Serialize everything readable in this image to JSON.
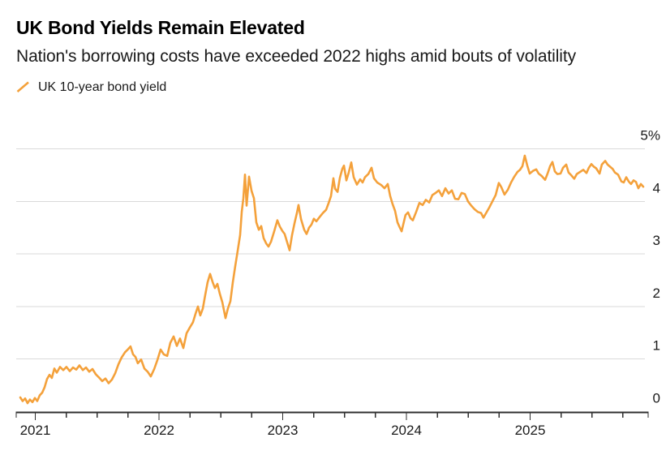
{
  "header": {
    "title": "UK Bond Yields Remain Elevated",
    "subtitle": "Nation's borrowing costs have exceeded 2022 highs amid bouts of volatility"
  },
  "legend": {
    "label": "UK 10-year bond yield",
    "marker": "orange-slash"
  },
  "colors": {
    "line": "#F4A13B",
    "grid": "#D9D9D9",
    "axis": "#2F2F2F",
    "tick_text": "#1A1A1A",
    "background": "#FFFFFF"
  },
  "chart_data": {
    "type": "line",
    "title": "UK Bond Yields Remain Elevated",
    "subtitle": "Nation's borrowing costs have exceeded 2022 highs amid bouts of volatility",
    "legend_position": "top-left",
    "grid": "horizontal",
    "x_axis": {
      "tick_values": [
        2021,
        2022,
        2023,
        2024,
        2025
      ],
      "tick_labels": [
        "2021",
        "2022",
        "2023",
        "2024",
        "2025"
      ],
      "minor_tick_step": 0.25,
      "range": [
        2020.87,
        2025.93
      ]
    },
    "y_axis": {
      "tick_values": [
        0,
        1,
        2,
        3,
        4,
        5
      ],
      "tick_labels": [
        "0",
        "1",
        "2",
        "3",
        "4",
        "5%"
      ],
      "range": [
        0,
        5
      ],
      "unit": "percent"
    },
    "series": [
      {
        "name": "UK 10-year bond yield",
        "color": "#F4A13B",
        "points": [
          [
            2020.879,
            0.27
          ],
          [
            2020.898,
            0.2
          ],
          [
            2020.918,
            0.25
          ],
          [
            2020.938,
            0.16
          ],
          [
            2020.957,
            0.23
          ],
          [
            2020.977,
            0.18
          ],
          [
            2020.997,
            0.26
          ],
          [
            2021.016,
            0.2
          ],
          [
            2021.036,
            0.31
          ],
          [
            2021.056,
            0.36
          ],
          [
            2021.075,
            0.46
          ],
          [
            2021.095,
            0.62
          ],
          [
            2021.115,
            0.7
          ],
          [
            2021.134,
            0.64
          ],
          [
            2021.154,
            0.82
          ],
          [
            2021.174,
            0.74
          ],
          [
            2021.2,
            0.85
          ],
          [
            2021.226,
            0.79
          ],
          [
            2021.252,
            0.85
          ],
          [
            2021.279,
            0.77
          ],
          [
            2021.305,
            0.84
          ],
          [
            2021.331,
            0.8
          ],
          [
            2021.357,
            0.88
          ],
          [
            2021.384,
            0.79
          ],
          [
            2021.41,
            0.84
          ],
          [
            2021.436,
            0.76
          ],
          [
            2021.462,
            0.81
          ],
          [
            2021.489,
            0.71
          ],
          [
            2021.515,
            0.65
          ],
          [
            2021.541,
            0.58
          ],
          [
            2021.567,
            0.63
          ],
          [
            2021.593,
            0.54
          ],
          [
            2021.62,
            0.61
          ],
          [
            2021.646,
            0.73
          ],
          [
            2021.672,
            0.9
          ],
          [
            2021.698,
            1.03
          ],
          [
            2021.725,
            1.13
          ],
          [
            2021.751,
            1.19
          ],
          [
            2021.77,
            1.24
          ],
          [
            2021.79,
            1.09
          ],
          [
            2021.81,
            1.04
          ],
          [
            2021.829,
            0.92
          ],
          [
            2021.856,
            0.99
          ],
          [
            2021.882,
            0.82
          ],
          [
            2021.908,
            0.76
          ],
          [
            2021.934,
            0.67
          ],
          [
            2021.961,
            0.81
          ],
          [
            2021.987,
            0.98
          ],
          [
            2022.013,
            1.18
          ],
          [
            2022.039,
            1.09
          ],
          [
            2022.066,
            1.06
          ],
          [
            2022.092,
            1.31
          ],
          [
            2022.118,
            1.43
          ],
          [
            2022.144,
            1.25
          ],
          [
            2022.17,
            1.39
          ],
          [
            2022.197,
            1.21
          ],
          [
            2022.223,
            1.49
          ],
          [
            2022.249,
            1.6
          ],
          [
            2022.275,
            1.7
          ],
          [
            2022.295,
            1.86
          ],
          [
            2022.315,
            2.0
          ],
          [
            2022.334,
            1.83
          ],
          [
            2022.354,
            1.96
          ],
          [
            2022.374,
            2.22
          ],
          [
            2022.393,
            2.46
          ],
          [
            2022.413,
            2.62
          ],
          [
            2022.433,
            2.47
          ],
          [
            2022.452,
            2.35
          ],
          [
            2022.472,
            2.43
          ],
          [
            2022.492,
            2.24
          ],
          [
            2022.512,
            2.08
          ],
          [
            2022.538,
            1.78
          ],
          [
            2022.557,
            1.96
          ],
          [
            2022.577,
            2.1
          ],
          [
            2022.597,
            2.46
          ],
          [
            2022.616,
            2.76
          ],
          [
            2022.636,
            3.06
          ],
          [
            2022.656,
            3.36
          ],
          [
            2022.669,
            3.8
          ],
          [
            2022.682,
            4.06
          ],
          [
            2022.695,
            4.51
          ],
          [
            2022.708,
            3.92
          ],
          [
            2022.728,
            4.47
          ],
          [
            2022.748,
            4.2
          ],
          [
            2022.767,
            4.06
          ],
          [
            2022.787,
            3.6
          ],
          [
            2022.807,
            3.46
          ],
          [
            2022.826,
            3.53
          ],
          [
            2022.846,
            3.3
          ],
          [
            2022.866,
            3.2
          ],
          [
            2022.885,
            3.14
          ],
          [
            2022.905,
            3.23
          ],
          [
            2022.931,
            3.43
          ],
          [
            2022.957,
            3.64
          ],
          [
            2022.977,
            3.52
          ],
          [
            2022.997,
            3.44
          ],
          [
            2023.016,
            3.38
          ],
          [
            2023.036,
            3.22
          ],
          [
            2023.056,
            3.07
          ],
          [
            2023.075,
            3.35
          ],
          [
            2023.095,
            3.58
          ],
          [
            2023.115,
            3.78
          ],
          [
            2023.128,
            3.93
          ],
          [
            2023.148,
            3.66
          ],
          [
            2023.174,
            3.46
          ],
          [
            2023.193,
            3.38
          ],
          [
            2023.213,
            3.5
          ],
          [
            2023.233,
            3.56
          ],
          [
            2023.252,
            3.67
          ],
          [
            2023.272,
            3.62
          ],
          [
            2023.298,
            3.7
          ],
          [
            2023.325,
            3.78
          ],
          [
            2023.351,
            3.84
          ],
          [
            2023.37,
            3.96
          ],
          [
            2023.39,
            4.1
          ],
          [
            2023.41,
            4.44
          ],
          [
            2023.423,
            4.24
          ],
          [
            2023.443,
            4.18
          ],
          [
            2023.462,
            4.45
          ],
          [
            2023.482,
            4.62
          ],
          [
            2023.495,
            4.68
          ],
          [
            2023.515,
            4.4
          ],
          [
            2023.534,
            4.55
          ],
          [
            2023.554,
            4.74
          ],
          [
            2023.574,
            4.46
          ],
          [
            2023.6,
            4.32
          ],
          [
            2023.626,
            4.42
          ],
          [
            2023.646,
            4.36
          ],
          [
            2023.665,
            4.46
          ],
          [
            2023.692,
            4.52
          ],
          [
            2023.718,
            4.64
          ],
          [
            2023.738,
            4.44
          ],
          [
            2023.764,
            4.36
          ],
          [
            2023.797,
            4.31
          ],
          [
            2023.823,
            4.25
          ],
          [
            2023.849,
            4.33
          ],
          [
            2023.869,
            4.1
          ],
          [
            2023.888,
            3.95
          ],
          [
            2023.908,
            3.82
          ],
          [
            2023.928,
            3.6
          ],
          [
            2023.947,
            3.5
          ],
          [
            2023.961,
            3.43
          ],
          [
            2023.98,
            3.62
          ],
          [
            2023.993,
            3.74
          ],
          [
            2024.013,
            3.79
          ],
          [
            2024.033,
            3.68
          ],
          [
            2024.052,
            3.64
          ],
          [
            2024.079,
            3.8
          ],
          [
            2024.105,
            3.97
          ],
          [
            2024.131,
            3.93
          ],
          [
            2024.157,
            4.03
          ],
          [
            2024.184,
            3.98
          ],
          [
            2024.21,
            4.12
          ],
          [
            2024.236,
            4.16
          ],
          [
            2024.262,
            4.21
          ],
          [
            2024.288,
            4.1
          ],
          [
            2024.315,
            4.25
          ],
          [
            2024.341,
            4.15
          ],
          [
            2024.367,
            4.21
          ],
          [
            2024.393,
            4.05
          ],
          [
            2024.42,
            4.04
          ],
          [
            2024.446,
            4.16
          ],
          [
            2024.472,
            4.14
          ],
          [
            2024.498,
            4.0
          ],
          [
            2024.524,
            3.92
          ],
          [
            2024.551,
            3.85
          ],
          [
            2024.577,
            3.8
          ],
          [
            2024.603,
            3.78
          ],
          [
            2024.623,
            3.69
          ],
          [
            2024.642,
            3.77
          ],
          [
            2024.669,
            3.88
          ],
          [
            2024.695,
            4.0
          ],
          [
            2024.721,
            4.12
          ],
          [
            2024.747,
            4.35
          ],
          [
            2024.767,
            4.27
          ],
          [
            2024.793,
            4.13
          ],
          [
            2024.82,
            4.22
          ],
          [
            2024.846,
            4.36
          ],
          [
            2024.872,
            4.47
          ],
          [
            2024.898,
            4.56
          ],
          [
            2024.918,
            4.6
          ],
          [
            2024.938,
            4.67
          ],
          [
            2024.957,
            4.87
          ],
          [
            2024.977,
            4.68
          ],
          [
            2024.997,
            4.53
          ],
          [
            2025.023,
            4.58
          ],
          [
            2025.049,
            4.61
          ],
          [
            2025.069,
            4.53
          ],
          [
            2025.095,
            4.48
          ],
          [
            2025.121,
            4.41
          ],
          [
            2025.141,
            4.53
          ],
          [
            2025.161,
            4.67
          ],
          [
            2025.18,
            4.75
          ],
          [
            2025.2,
            4.57
          ],
          [
            2025.22,
            4.52
          ],
          [
            2025.246,
            4.53
          ],
          [
            2025.266,
            4.64
          ],
          [
            2025.292,
            4.7
          ],
          [
            2025.311,
            4.55
          ],
          [
            2025.331,
            4.5
          ],
          [
            2025.357,
            4.43
          ],
          [
            2025.377,
            4.52
          ],
          [
            2025.403,
            4.56
          ],
          [
            2025.43,
            4.6
          ],
          [
            2025.456,
            4.54
          ],
          [
            2025.475,
            4.64
          ],
          [
            2025.495,
            4.71
          ],
          [
            2025.515,
            4.66
          ],
          [
            2025.534,
            4.63
          ],
          [
            2025.561,
            4.53
          ],
          [
            2025.58,
            4.7
          ],
          [
            2025.607,
            4.77
          ],
          [
            2025.626,
            4.7
          ],
          [
            2025.646,
            4.66
          ],
          [
            2025.666,
            4.62
          ],
          [
            2025.685,
            4.55
          ],
          [
            2025.711,
            4.51
          ],
          [
            2025.738,
            4.38
          ],
          [
            2025.757,
            4.36
          ],
          [
            2025.777,
            4.46
          ],
          [
            2025.797,
            4.38
          ],
          [
            2025.816,
            4.33
          ],
          [
            2025.836,
            4.4
          ],
          [
            2025.856,
            4.37
          ],
          [
            2025.875,
            4.25
          ],
          [
            2025.895,
            4.33
          ],
          [
            2025.915,
            4.28
          ]
        ]
      }
    ]
  }
}
